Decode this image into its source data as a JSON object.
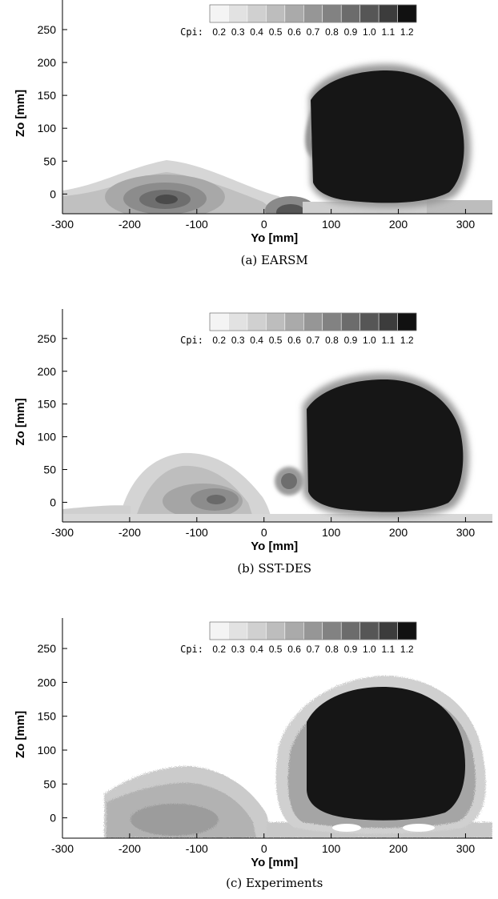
{
  "chart_data": [
    {
      "type": "contour",
      "caption": "(a) EARSM",
      "xlabel": "Yo [mm]",
      "ylabel": "Zo [mm]",
      "xlim": [
        -300,
        340
      ],
      "ylim": [
        -30,
        295
      ],
      "xticks": [
        "-300",
        "-200",
        "-100",
        "0",
        "100",
        "200",
        "300"
      ],
      "yticks": [
        "0",
        "50",
        "100",
        "150",
        "200",
        "250"
      ],
      "colorbar": {
        "title": "Cpi:",
        "levels": [
          "0.2",
          "0.3",
          "0.4",
          "0.5",
          "0.6",
          "0.7",
          "0.8",
          "0.9",
          "1.0",
          "1.1",
          "1.2"
        ]
      }
    },
    {
      "type": "contour",
      "caption": "(b) SST-DES",
      "xlabel": "Yo [mm]",
      "ylabel": "Zo [mm]",
      "xlim": [
        -300,
        340
      ],
      "ylim": [
        -30,
        295
      ],
      "xticks": [
        "-300",
        "-200",
        "-100",
        "0",
        "100",
        "200",
        "300"
      ],
      "yticks": [
        "0",
        "50",
        "100",
        "150",
        "200",
        "250"
      ],
      "colorbar": {
        "title": "Cpi:",
        "levels": [
          "0.2",
          "0.3",
          "0.4",
          "0.5",
          "0.6",
          "0.7",
          "0.8",
          "0.9",
          "1.0",
          "1.1",
          "1.2"
        ]
      }
    },
    {
      "type": "contour",
      "caption": "(c) Experiments",
      "xlabel": "Yo [mm]",
      "ylabel": "Zo [mm]",
      "xlim": [
        -300,
        340
      ],
      "ylim": [
        -30,
        295
      ],
      "xticks": [
        "-300",
        "-200",
        "-100",
        "0",
        "100",
        "200",
        "300"
      ],
      "yticks": [
        "0",
        "50",
        "100",
        "150",
        "200",
        "250"
      ],
      "colorbar": {
        "title": "Cpi:",
        "levels": [
          "0.2",
          "0.3",
          "0.4",
          "0.5",
          "0.6",
          "0.7",
          "0.8",
          "0.9",
          "1.0",
          "1.1",
          "1.2"
        ]
      }
    }
  ],
  "colors": {
    "levels": [
      "#f4f4f4",
      "#e2e2e2",
      "#d0d0d0",
      "#bdbdbd",
      "#aaaaaa",
      "#969696",
      "#828282",
      "#6c6c6c",
      "#565656",
      "#3c3c3c",
      "#111111"
    ],
    "body": "#161616"
  }
}
